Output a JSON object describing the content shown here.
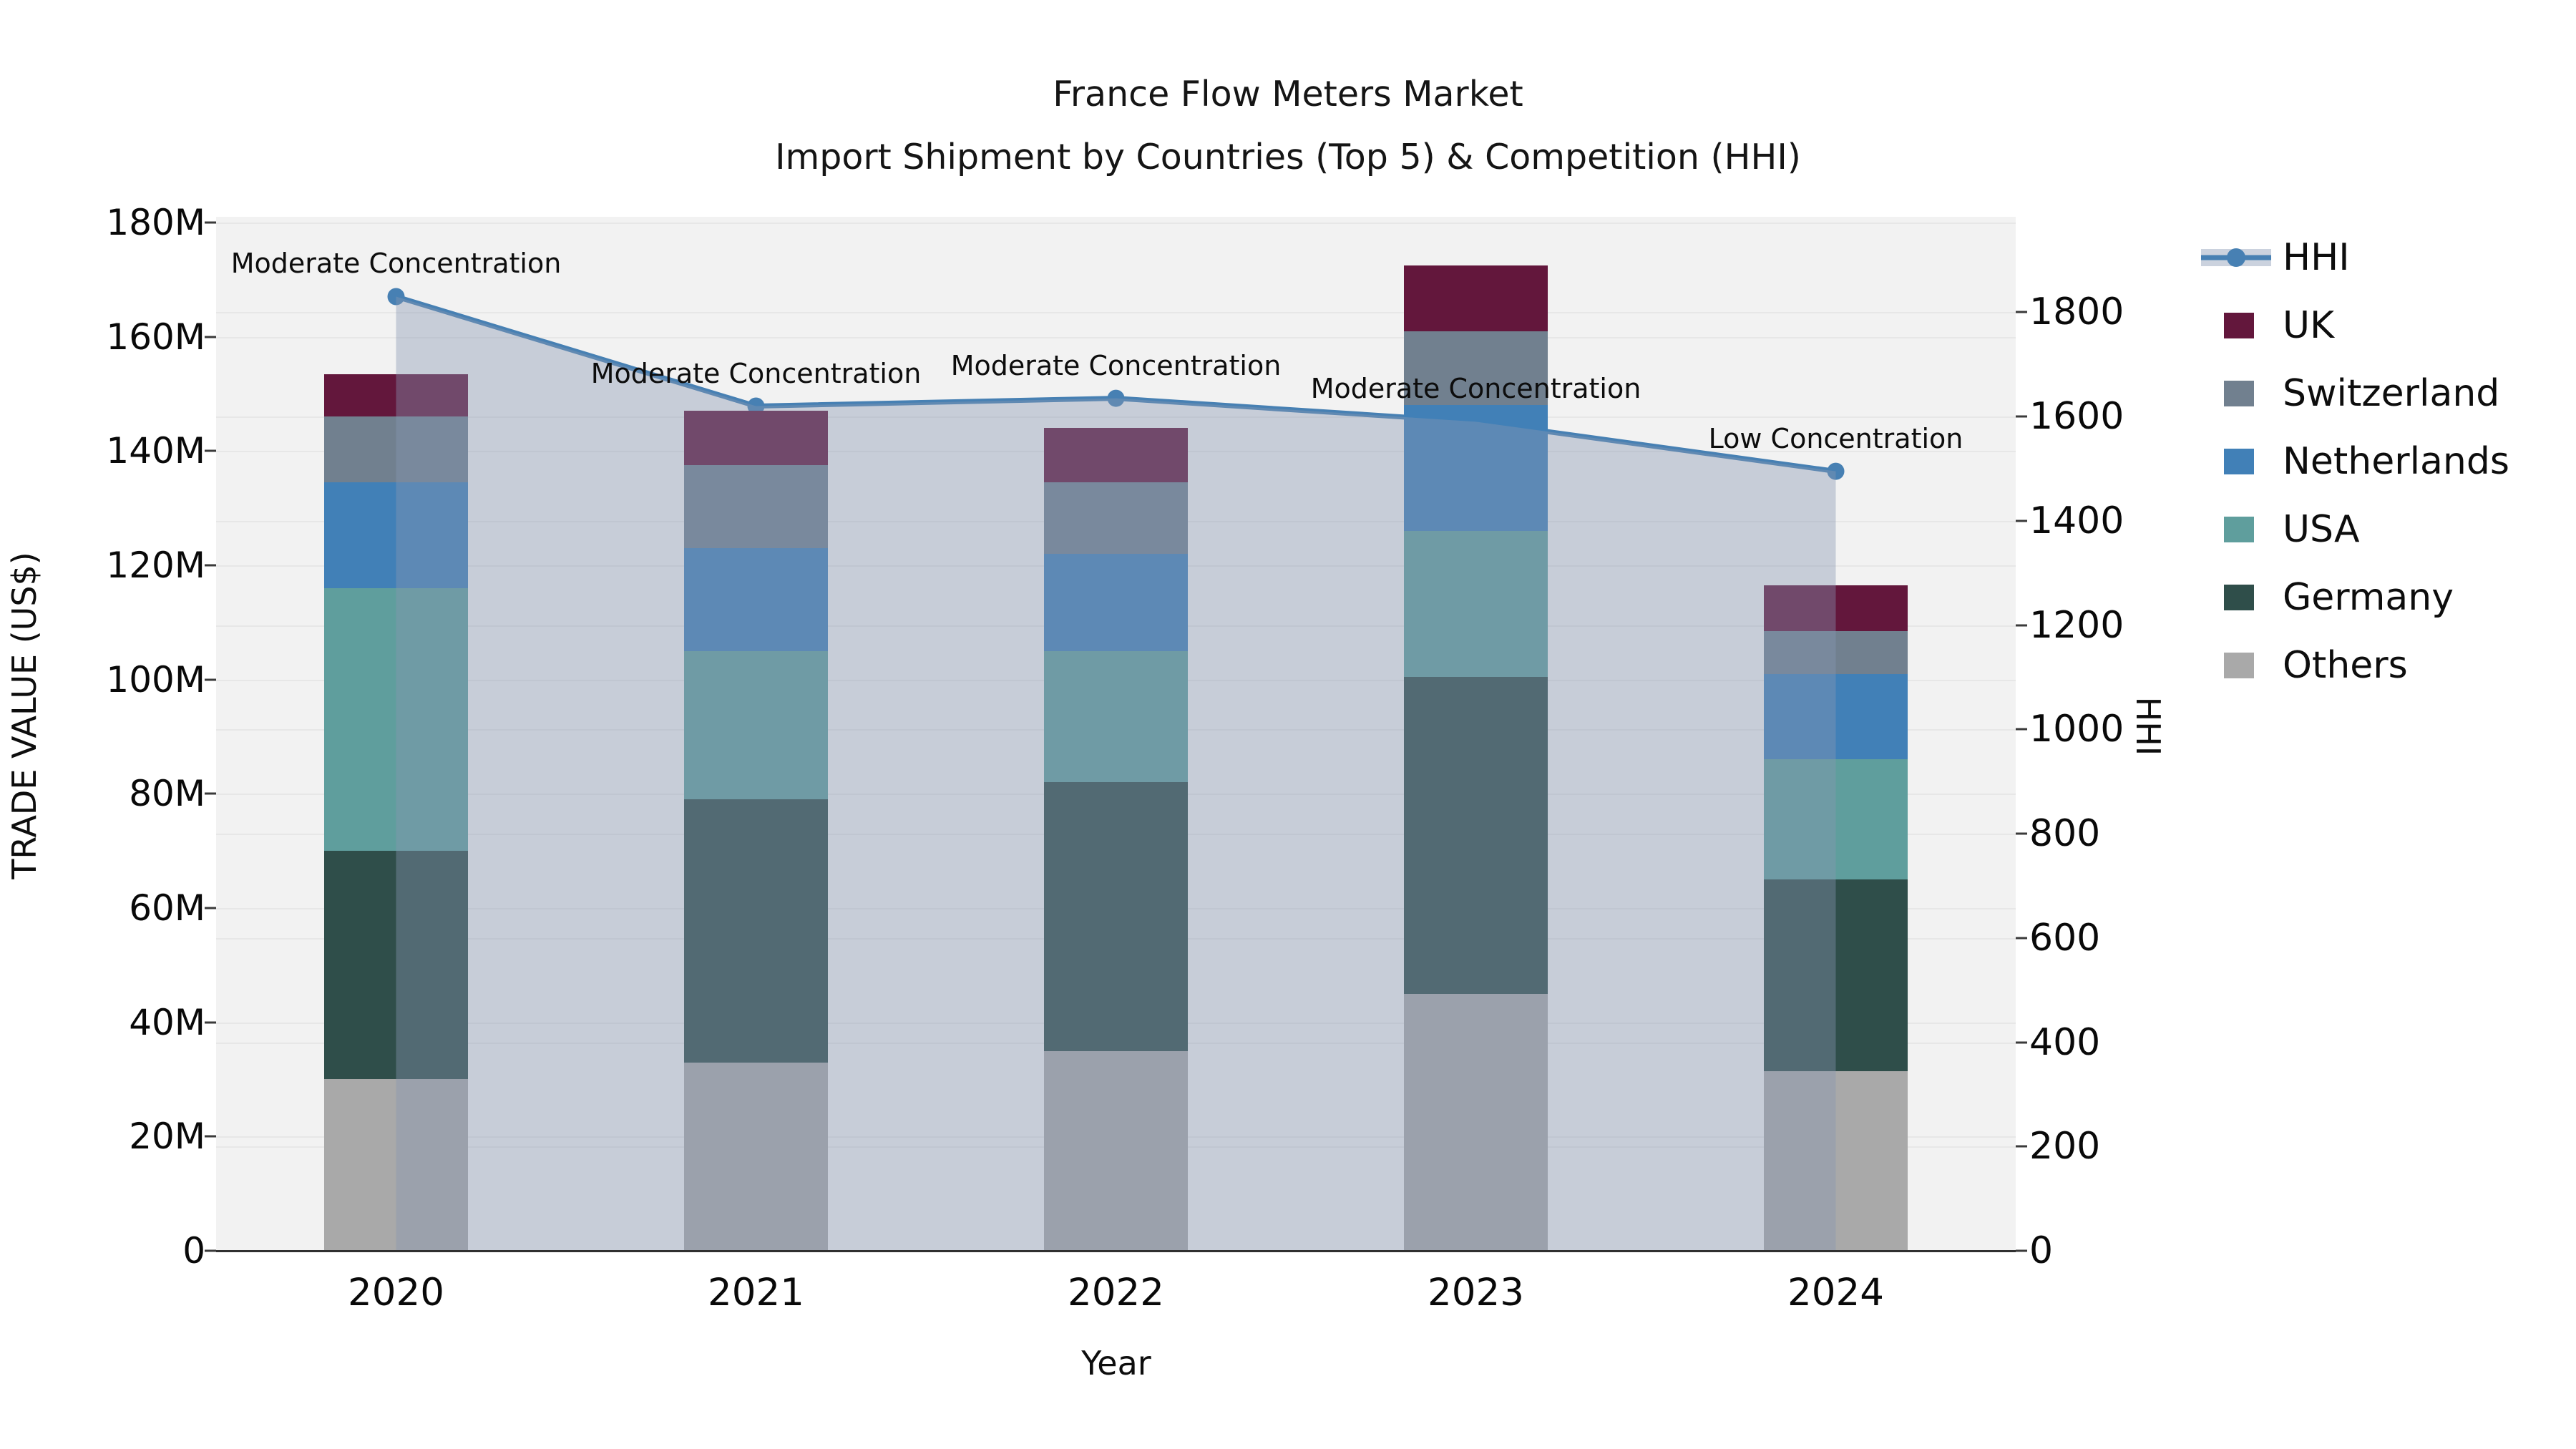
{
  "chart": {
    "title_line1": "France Flow Meters Market",
    "title_line2": "Import Shipment by Countries (Top 5) & Competition (HHI)",
    "xlabel": "Year",
    "ylabel_left": "TRADE VALUE (US$)",
    "ylabel_right": "HHI"
  },
  "chart_data": {
    "type": "stacked-bar+line",
    "categories": [
      "2020",
      "2021",
      "2022",
      "2023",
      "2024"
    ],
    "unit": "M US$",
    "series": [
      {
        "name": "Others",
        "color": "#a9a9a9",
        "values": [
          30,
          33,
          35,
          45,
          31.5
        ]
      },
      {
        "name": "Germany",
        "color": "#2f4e4a",
        "values": [
          40,
          46,
          47,
          55.5,
          33.5
        ]
      },
      {
        "name": "USA",
        "color": "#5f9e9d",
        "values": [
          46,
          26,
          23,
          25.5,
          21
        ]
      },
      {
        "name": "Netherlands",
        "color": "#4180b7",
        "values": [
          18.5,
          18,
          17,
          22,
          15
        ]
      },
      {
        "name": "Switzerland",
        "color": "#71808f",
        "values": [
          11.5,
          14.5,
          12.5,
          13,
          7.5
        ]
      },
      {
        "name": "UK",
        "color": "#63173c",
        "values": [
          7.5,
          9.5,
          9.5,
          11.5,
          8
        ]
      }
    ],
    "bar_totals": [
      153.5,
      147,
      144,
      172.5,
      116.5
    ],
    "hhi_line": {
      "name": "HHI",
      "color": "#4780b3",
      "fill_color": "rgba(136,150,178,0.40)",
      "values": [
        1830,
        1620,
        1635,
        1590,
        1495
      ]
    },
    "annotations": [
      {
        "category": "2020",
        "text": "Moderate Concentration"
      },
      {
        "category": "2021",
        "text": "Moderate Concentration"
      },
      {
        "category": "2022",
        "text": "Moderate Concentration"
      },
      {
        "category": "2023",
        "text": "Moderate Concentration"
      },
      {
        "category": "2024",
        "text": "Low Concentration"
      }
    ],
    "left_axis": {
      "tick_values": [
        0,
        20,
        40,
        60,
        80,
        100,
        120,
        140,
        160,
        180
      ],
      "tick_labels": [
        "0",
        "20M",
        "40M",
        "60M",
        "80M",
        "100M",
        "120M",
        "140M",
        "160M",
        "180M"
      ],
      "top_value": 181
    },
    "right_axis": {
      "tick_values": [
        0,
        200,
        400,
        600,
        800,
        1000,
        1200,
        1400,
        1600,
        1800
      ],
      "tick_labels": [
        "0",
        "200",
        "400",
        "600",
        "800",
        "1000",
        "1200",
        "1400",
        "1600",
        "1800"
      ],
      "top_value": 1983
    },
    "legend_order": [
      "HHI",
      "UK",
      "Switzerland",
      "Netherlands",
      "USA",
      "Germany",
      "Others"
    ],
    "legend_position": "right"
  }
}
